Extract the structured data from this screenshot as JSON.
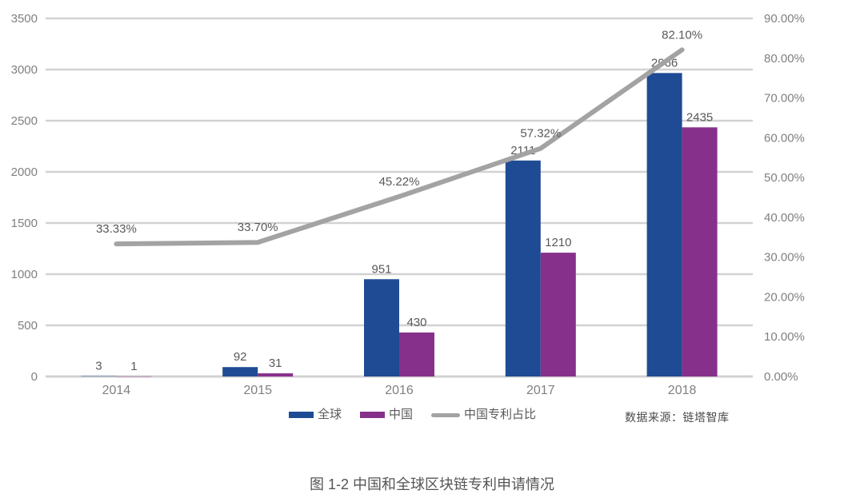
{
  "chart_data": {
    "type": "bar",
    "subtype": "grouped-bar-with-line",
    "categories": [
      "2014",
      "2015",
      "2016",
      "2017",
      "2018"
    ],
    "series": [
      {
        "name": "全球",
        "type": "bar",
        "axis": "left",
        "color": "#1F4B94",
        "values": [
          3,
          92,
          951,
          2111,
          2966
        ],
        "value_labels": [
          "3",
          "92",
          "951",
          "2111",
          "2966"
        ]
      },
      {
        "name": "中国",
        "type": "bar",
        "axis": "left",
        "color": "#86308C",
        "values": [
          1,
          31,
          430,
          1210,
          2435
        ],
        "value_labels": [
          "1",
          "31",
          "430",
          "1210",
          "2435"
        ]
      },
      {
        "name": "中国专利占比",
        "type": "line",
        "axis": "right",
        "color": "#A3A3A3",
        "values": [
          33.33,
          33.7,
          45.22,
          57.32,
          82.1
        ],
        "value_labels": [
          "33.33%",
          "33.70%",
          "45.22%",
          "57.32%",
          "82.10%"
        ]
      }
    ],
    "left_axis": {
      "min": 0,
      "max": 3500,
      "step": 500,
      "ticks": [
        "0",
        "500",
        "1000",
        "1500",
        "2000",
        "2500",
        "3000",
        "3500"
      ]
    },
    "right_axis": {
      "min": 0,
      "max": 90,
      "step": 10,
      "ticks": [
        "0.00%",
        "10.00%",
        "20.00%",
        "30.00%",
        "40.00%",
        "50.00%",
        "60.00%",
        "70.00%",
        "80.00%",
        "90.00%"
      ]
    },
    "grid": true,
    "legend_position": "bottom"
  },
  "legend": {
    "items": [
      {
        "label": "全球",
        "swatch": "bar",
        "color": "#1F4B94"
      },
      {
        "label": "中国",
        "swatch": "bar",
        "color": "#86308C"
      },
      {
        "label": "中国专利占比",
        "swatch": "line",
        "color": "#A3A3A3"
      }
    ]
  },
  "source_note": "数据来源：链塔智库",
  "caption": "图 1-2 中国和全球区块链专利申请情况",
  "colors": {
    "global_bar": "#1F4B94",
    "china_bar": "#86308C",
    "line": "#A3A3A3",
    "gridline": "#D2D2D2",
    "axis_text": "#808080",
    "label_text": "#595959",
    "background": "#FFFFFF"
  }
}
